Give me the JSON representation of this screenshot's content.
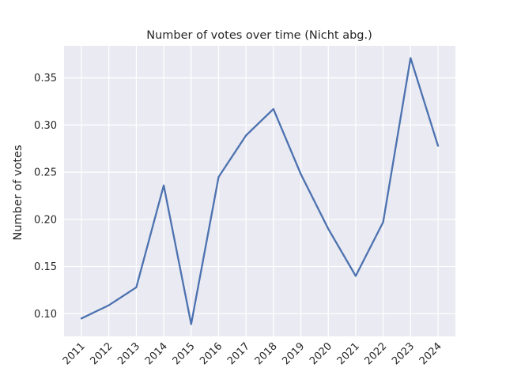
{
  "chart_data": {
    "type": "line",
    "title": "Number of votes over time (Nicht abg.)",
    "xlabel": "",
    "ylabel": "Number of votes",
    "x": [
      "2011",
      "2012",
      "2013",
      "2014",
      "2015",
      "2016",
      "2017",
      "2018",
      "2019",
      "2020",
      "2021",
      "2022",
      "2023",
      "2024"
    ],
    "series": [
      {
        "values": [
          0.095,
          0.109,
          0.128,
          0.236,
          0.089,
          0.245,
          0.289,
          0.317,
          0.248,
          0.19,
          0.14,
          0.197,
          0.371,
          0.278
        ]
      }
    ],
    "yticks": [
      "0.10",
      "0.15",
      "0.20",
      "0.25",
      "0.30",
      "0.35"
    ],
    "ylim": [
      0.076,
      0.384
    ],
    "grid": true,
    "colors": {
      "background": "#eaeaf2",
      "grid": "#ffffff",
      "line": "#4c72b0"
    }
  }
}
